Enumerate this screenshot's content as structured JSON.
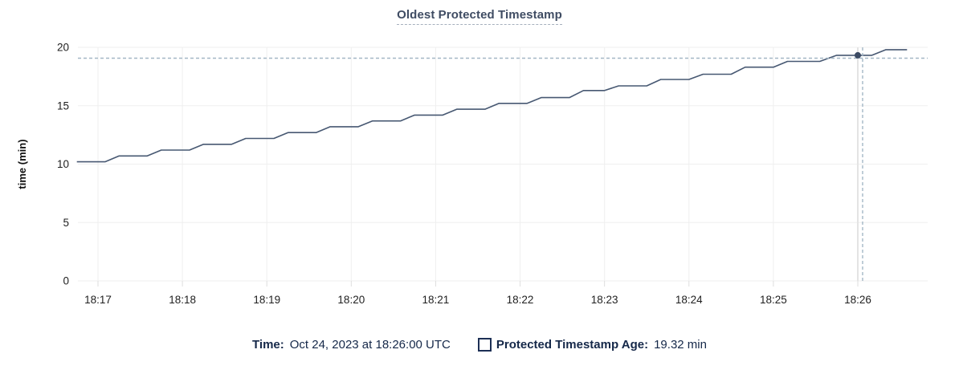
{
  "title": "Oldest Protected Timestamp",
  "colors": {
    "line": "#475872",
    "dot": "#3b4a63",
    "grid": "#efefef",
    "tick": "#dedede",
    "guideline": "#e4e4e4",
    "crosshair_dashed": "#a4b7c6",
    "title_text": "#3f4c63",
    "legend_text": "#152849"
  },
  "chart_data": {
    "type": "line",
    "title": "Oldest Protected Timestamp",
    "xlabel": "",
    "ylabel": "time (min)",
    "ylim": [
      0,
      20
    ],
    "yticks": [
      0,
      5,
      10,
      15,
      20
    ],
    "xtick_labels": [
      "18:17",
      "18:18",
      "18:19",
      "18:20",
      "18:21",
      "18:22",
      "18:23",
      "18:24",
      "18:25",
      "18:26"
    ],
    "x_domain": [
      "18:16:45",
      "18:26:35"
    ],
    "grid": true,
    "legend_position": "bottom",
    "series": [
      {
        "name": "Protected Timestamp Age",
        "unit": "min",
        "points": [
          [
            "18:16:45",
            10.2
          ],
          [
            "18:17:05",
            10.2
          ],
          [
            "18:17:15",
            10.7
          ],
          [
            "18:17:35",
            10.7
          ],
          [
            "18:17:45",
            11.2
          ],
          [
            "18:18:05",
            11.2
          ],
          [
            "18:18:15",
            11.7
          ],
          [
            "18:18:35",
            11.7
          ],
          [
            "18:18:45",
            12.2
          ],
          [
            "18:19:05",
            12.2
          ],
          [
            "18:19:15",
            12.7
          ],
          [
            "18:19:35",
            12.7
          ],
          [
            "18:19:45",
            13.2
          ],
          [
            "18:20:05",
            13.2
          ],
          [
            "18:20:15",
            13.7
          ],
          [
            "18:20:35",
            13.7
          ],
          [
            "18:20:45",
            14.2
          ],
          [
            "18:21:05",
            14.2
          ],
          [
            "18:21:15",
            14.7
          ],
          [
            "18:21:35",
            14.7
          ],
          [
            "18:21:45",
            15.2
          ],
          [
            "18:22:05",
            15.2
          ],
          [
            "18:22:15",
            15.7
          ],
          [
            "18:22:35",
            15.7
          ],
          [
            "18:22:45",
            16.3
          ],
          [
            "18:23:00",
            16.3
          ],
          [
            "18:23:10",
            16.7
          ],
          [
            "18:23:30",
            16.7
          ],
          [
            "18:23:40",
            17.25
          ],
          [
            "18:24:00",
            17.25
          ],
          [
            "18:24:10",
            17.7
          ],
          [
            "18:24:30",
            17.7
          ],
          [
            "18:24:40",
            18.3
          ],
          [
            "18:25:00",
            18.3
          ],
          [
            "18:25:10",
            18.8
          ],
          [
            "18:25:33",
            18.8
          ],
          [
            "18:25:45",
            19.32
          ],
          [
            "18:26:10",
            19.32
          ],
          [
            "18:26:20",
            19.8
          ],
          [
            "18:26:35",
            19.8
          ]
        ]
      }
    ],
    "hover_point": {
      "time": "18:26:00",
      "value": 19.32
    }
  },
  "legend": {
    "time_label": "Time:",
    "time_value": "Oct 24, 2023 at 18:26:00 UTC",
    "series_label": "Protected Timestamp Age:",
    "series_value": "19.32 min"
  }
}
